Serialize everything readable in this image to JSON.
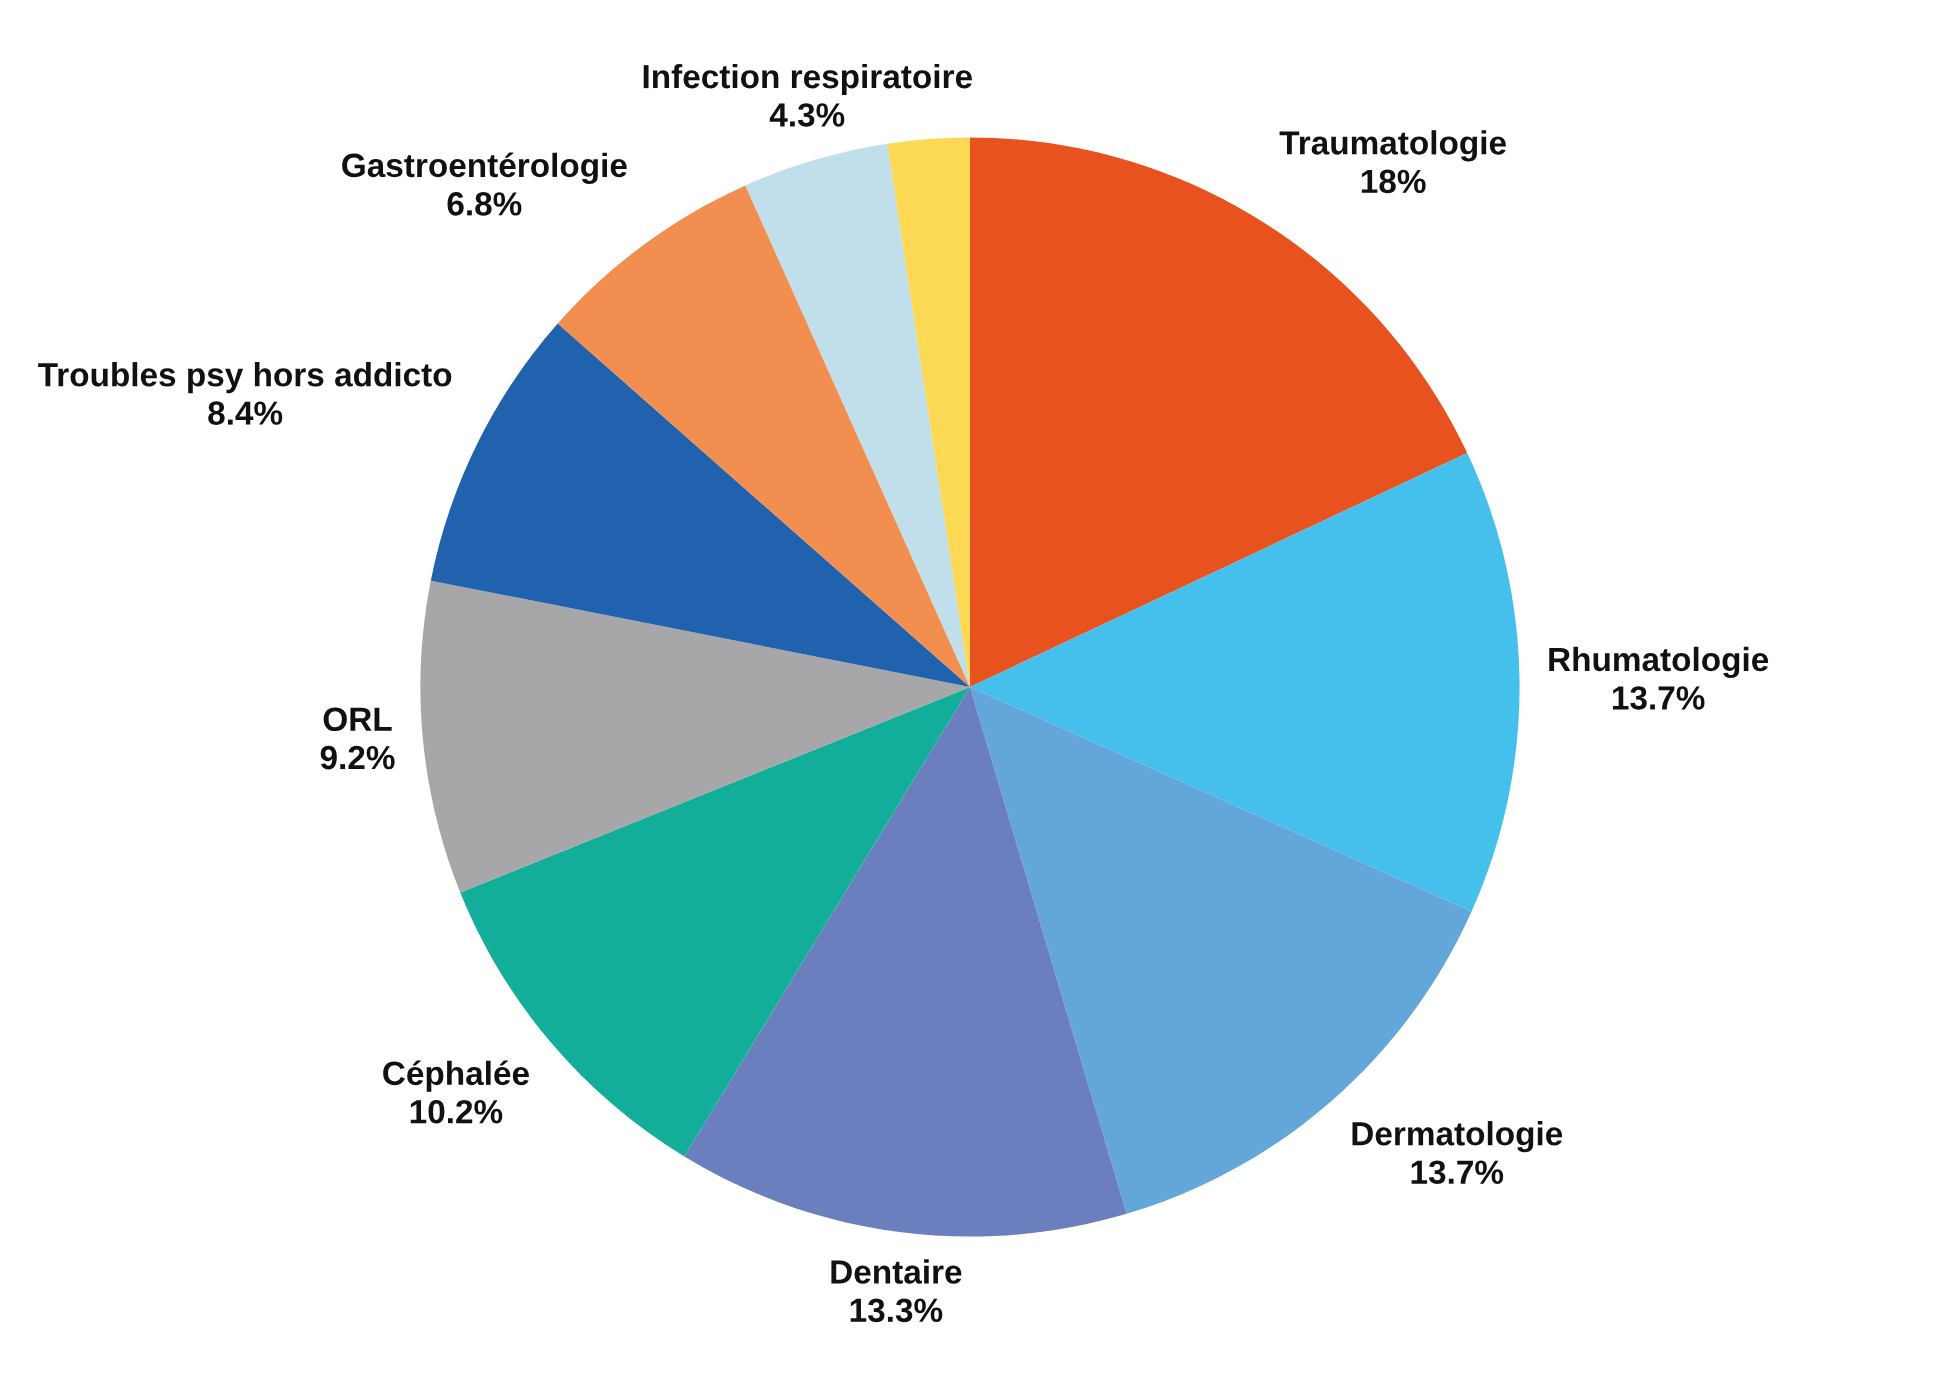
{
  "chart_data": {
    "type": "pie",
    "categories": [
      "Traumatologie",
      "Rhumatologie",
      "Dermatologie",
      "Dentaire",
      "Céphalée",
      "ORL",
      "Troubles psy hors addicto",
      "Gastroentérologie",
      "Infection respiratoire",
      null
    ],
    "values": [
      18,
      13.7,
      13.7,
      13.3,
      10.2,
      9.2,
      8.4,
      6.8,
      4.3,
      2.4
    ],
    "value_labels": [
      "18%",
      "13.7%",
      "13.7%",
      "13.3%",
      "10.2%",
      "9.2%",
      "8.4%",
      "6.8%",
      "4.3%",
      null
    ],
    "colors": [
      "#e8521e",
      "#45bfec",
      "#62a6da",
      "#6b7fbf",
      "#13ae9a",
      "#a7a6a8",
      "#2162ae",
      "#f28f50",
      "#c0dfeb",
      "#fcd955"
    ]
  }
}
